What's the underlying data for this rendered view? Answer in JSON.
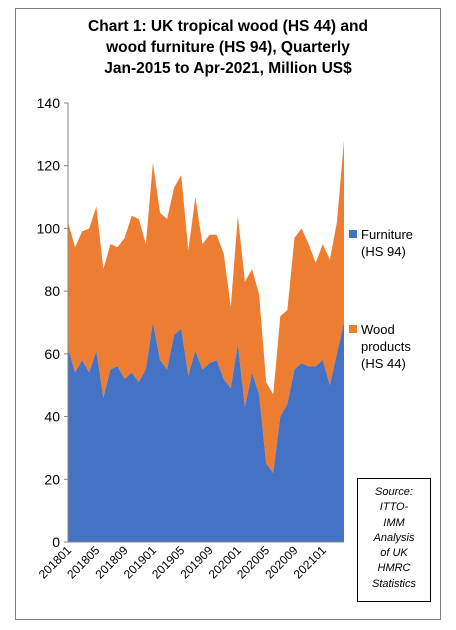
{
  "chart_data": {
    "type": "area",
    "stacked": true,
    "title_lines": [
      "Chart 1: UK tropical wood (HS 44) and",
      "wood furniture (HS 94), Quarterly",
      "Jan-2015 to Apr-2021, Million US$"
    ],
    "ylim": [
      0,
      140
    ],
    "y_ticks": [
      "0",
      "20",
      "40",
      "60",
      "80",
      "100",
      "120",
      "140"
    ],
    "x_tick_labels": [
      "201801",
      "201805",
      "201809",
      "201901",
      "201905",
      "201909",
      "202001",
      "202005",
      "202009",
      "202101"
    ],
    "grid": false,
    "legend_position": "right",
    "colors": {
      "furniture": "#4472c4",
      "wood": "#ed7d31"
    },
    "series": [
      {
        "name": "Furniture (HS 94)",
        "values": [
          62,
          54,
          58,
          54,
          61,
          46,
          55,
          56,
          52,
          54,
          51,
          55,
          70,
          58,
          55,
          66,
          68,
          53,
          61,
          55,
          57,
          58,
          52,
          49,
          63,
          43,
          54,
          47,
          25,
          22,
          40,
          44,
          55,
          57,
          56,
          56,
          58,
          50,
          60,
          70
        ]
      },
      {
        "name": "Wood products (HS 44)",
        "values": [
          40,
          40,
          41,
          46,
          46,
          41,
          40,
          38,
          45,
          50,
          52,
          40,
          51,
          47,
          48,
          47,
          49,
          40,
          49,
          40,
          41,
          40,
          40,
          26,
          41,
          40,
          33,
          32,
          26,
          25,
          32,
          30,
          42,
          43,
          39,
          33,
          37,
          40,
          42,
          58
        ]
      }
    ]
  },
  "legend": [
    {
      "label_lines": [
        "Furniture",
        "(HS 94)"
      ]
    },
    {
      "label_lines": [
        "Wood",
        "products",
        "(HS 44)"
      ]
    }
  ],
  "source_lines": [
    "Source:",
    "ITTO-",
    "IMM",
    "Analysis",
    "of UK",
    "HMRC",
    "Statistics"
  ]
}
